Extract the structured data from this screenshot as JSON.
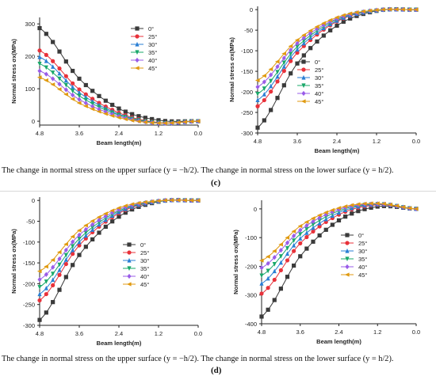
{
  "captions": {
    "row1": "The change in normal stress on the upper surface (y = −h/2). The change in normal stress on the lower surface (y = h/2).",
    "label1": "(c)",
    "row2": "The change in normal stress on the upper surface (y = −h/2). The change in normal stress on the lower surface (y = h/2).",
    "label2": "(d)"
  },
  "colors": {
    "0°": "#3a3a3a",
    "25°": "#e8313a",
    "30°": "#2a7fd4",
    "35°": "#1aa86a",
    "40°": "#9a5ce8",
    "45°": "#e09a10"
  },
  "chart_data": [
    {
      "type": "line",
      "xlabel": "Beam length(m)",
      "ylabel": "Normal stress σx(MPa)",
      "xticks": [
        "4.8",
        "3.6",
        "2.4",
        "1.2",
        "0.0"
      ],
      "yticks": [
        0,
        100,
        200,
        300
      ],
      "xlim": [
        4.8,
        0.0
      ],
      "ylim": [
        -12,
        320
      ],
      "legend_position": "top-middle",
      "series": [
        {
          "name": "0°",
          "x": [
            4.8,
            3.6,
            2.4,
            1.2,
            0.0
          ],
          "values": [
            287,
            131,
            39,
            3,
            0
          ]
        },
        {
          "name": "25°",
          "x": [
            4.8,
            3.6,
            2.4,
            1.2,
            0.0
          ],
          "values": [
            218,
            98,
            26,
            -4,
            0
          ]
        },
        {
          "name": "30°",
          "x": [
            4.8,
            3.6,
            2.4,
            1.2,
            0.0
          ],
          "values": [
            198,
            88,
            22,
            -5,
            0
          ]
        },
        {
          "name": "35°",
          "x": [
            4.8,
            3.6,
            2.4,
            1.2,
            0.0
          ],
          "values": [
            177,
            78,
            19,
            -5,
            0
          ]
        },
        {
          "name": "40°",
          "x": [
            4.8,
            3.6,
            2.4,
            1.2,
            0.0
          ],
          "values": [
            155,
            67,
            15,
            -6,
            0
          ]
        },
        {
          "name": "45°",
          "x": [
            4.8,
            3.6,
            2.4,
            1.2,
            0.0
          ],
          "values": [
            135,
            56,
            11,
            -6,
            0
          ]
        }
      ]
    },
    {
      "type": "line",
      "xlabel": "Beam length(m)",
      "ylabel": "Normal stress σx(MPa)",
      "xticks": [
        "4.8",
        "3.6",
        "2.4",
        "1.2",
        "0.0"
      ],
      "yticks": [
        0,
        -50,
        -100,
        -150,
        -200,
        -250,
        -300
      ],
      "xlim": [
        4.8,
        0.0
      ],
      "ylim": [
        -300,
        8
      ],
      "legend_position": "bottom-middle",
      "series": [
        {
          "name": "0°",
          "x": [
            4.8,
            3.6,
            2.4,
            1.2,
            0.0
          ],
          "values": [
            -287,
            -131,
            -39,
            -3,
            0
          ]
        },
        {
          "name": "25°",
          "x": [
            4.8,
            3.6,
            2.4,
            1.2,
            0.0
          ],
          "values": [
            -235,
            -105,
            -29,
            -2,
            0
          ]
        },
        {
          "name": "30°",
          "x": [
            4.8,
            3.6,
            2.4,
            1.2,
            0.0
          ],
          "values": [
            -220,
            -97,
            -27,
            -2,
            0
          ]
        },
        {
          "name": "35°",
          "x": [
            4.8,
            3.6,
            2.4,
            1.2,
            0.0
          ],
          "values": [
            -205,
            -90,
            -24,
            -2,
            0
          ]
        },
        {
          "name": "40°",
          "x": [
            4.8,
            3.6,
            2.4,
            1.2,
            0.0
          ],
          "values": [
            -188,
            -82,
            -22,
            -1,
            0
          ]
        },
        {
          "name": "45°",
          "x": [
            4.8,
            3.6,
            2.4,
            1.2,
            0.0
          ],
          "values": [
            -172,
            -74,
            -19,
            -1,
            0
          ]
        }
      ]
    },
    {
      "type": "line",
      "xlabel": "Beam length(m)",
      "ylabel": "Normal stress σx(MPa)",
      "xticks": [
        "4.8",
        "3.6",
        "2.4",
        "1.2",
        "0.0"
      ],
      "yticks": [
        0,
        -50,
        -100,
        -150,
        -200,
        -250,
        -300
      ],
      "xlim": [
        4.8,
        0.0
      ],
      "ylim": [
        -300,
        8
      ],
      "legend_position": "middle",
      "series": [
        {
          "name": "0°",
          "x": [
            4.8,
            3.6,
            2.4,
            1.2,
            0.0
          ],
          "values": [
            -287,
            -131,
            -39,
            -3,
            0
          ]
        },
        {
          "name": "25°",
          "x": [
            4.8,
            3.6,
            2.4,
            1.2,
            0.0
          ],
          "values": [
            -240,
            -108,
            -31,
            -2,
            0
          ]
        },
        {
          "name": "30°",
          "x": [
            4.8,
            3.6,
            2.4,
            1.2,
            0.0
          ],
          "values": [
            -225,
            -100,
            -28,
            -2,
            0
          ]
        },
        {
          "name": "35°",
          "x": [
            4.8,
            3.6,
            2.4,
            1.2,
            0.0
          ],
          "values": [
            -208,
            -92,
            -25,
            -2,
            0
          ]
        },
        {
          "name": "40°",
          "x": [
            4.8,
            3.6,
            2.4,
            1.2,
            0.0
          ],
          "values": [
            -190,
            -83,
            -22,
            -1,
            0
          ]
        },
        {
          "name": "45°",
          "x": [
            4.8,
            3.6,
            2.4,
            1.2,
            0.0
          ],
          "values": [
            -170,
            -72,
            -18,
            -1,
            0
          ]
        }
      ]
    },
    {
      "type": "line",
      "xlabel": "Beam length(m)",
      "ylabel": "Normal stress σx(MPa)",
      "xticks": [
        "4.8",
        "3.6",
        "2.4",
        "1.2",
        "0.0"
      ],
      "yticks": [
        0,
        -100,
        -200,
        -300,
        -400
      ],
      "xlim": [
        4.8,
        0.0
      ],
      "ylim": [
        -400,
        30
      ],
      "legend_position": "middle",
      "series": [
        {
          "name": "0°",
          "x": [
            4.8,
            3.6,
            2.4,
            1.2,
            0.0
          ],
          "values": [
            -375,
            -165,
            -40,
            8,
            0
          ]
        },
        {
          "name": "25°",
          "x": [
            4.8,
            3.6,
            2.4,
            1.2,
            0.0
          ],
          "values": [
            -295,
            -120,
            -20,
            14,
            0
          ]
        },
        {
          "name": "30°",
          "x": [
            4.8,
            3.6,
            2.4,
            1.2,
            0.0
          ],
          "values": [
            -260,
            -103,
            -13,
            16,
            0
          ]
        },
        {
          "name": "35°",
          "x": [
            4.8,
            3.6,
            2.4,
            1.2,
            0.0
          ],
          "values": [
            -232,
            -88,
            -7,
            17,
            0
          ]
        },
        {
          "name": "40°",
          "x": [
            4.8,
            3.6,
            2.4,
            1.2,
            0.0
          ],
          "values": [
            -205,
            -74,
            -2,
            18,
            0
          ]
        },
        {
          "name": "45°",
          "x": [
            4.8,
            3.6,
            2.4,
            1.2,
            0.0
          ],
          "values": [
            -180,
            -60,
            3,
            19,
            0
          ]
        }
      ]
    }
  ]
}
